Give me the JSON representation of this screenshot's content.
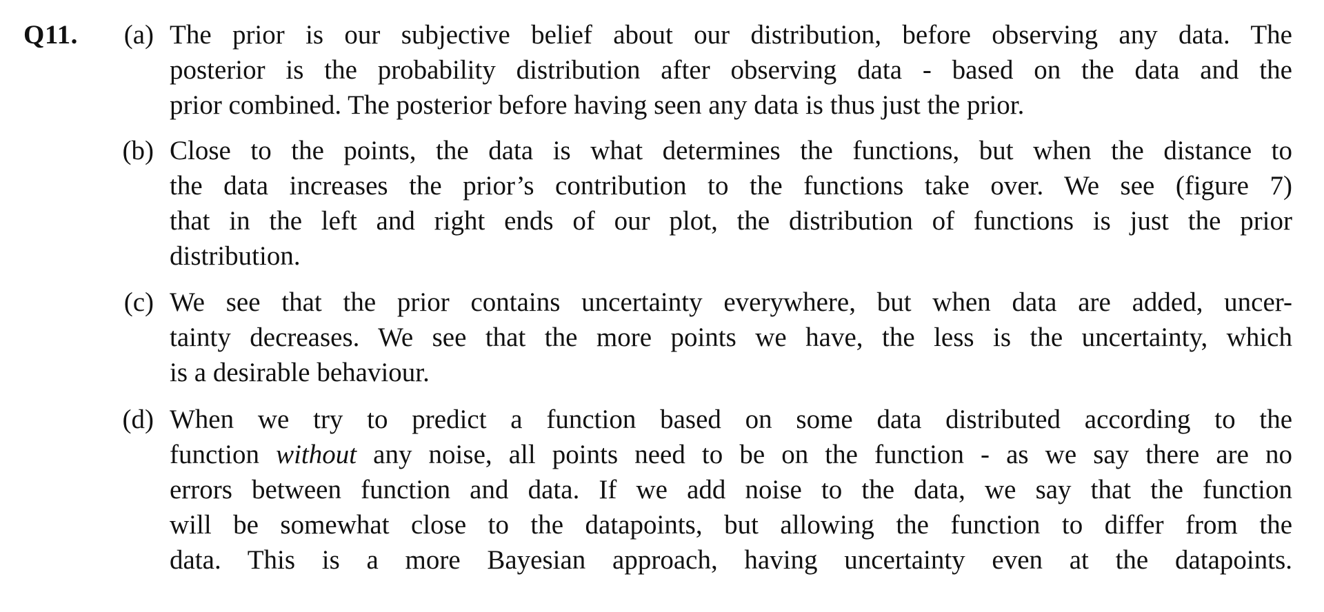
{
  "question": {
    "number": "Q11."
  },
  "items": [
    {
      "label": "(a)",
      "lines": [
        "The prior is our subjective belief about our distribution, before observing any data. The",
        "posterior is the probability distribution after observing data - based on the data and the",
        "prior combined. The posterior before having seen any data is thus just the prior."
      ]
    },
    {
      "label": "(b)",
      "lines": [
        "Close to the points, the data is what determines the functions, but when the distance to",
        "the data increases the prior’s contribution to the functions take over. We see (figure 7)",
        "that in the left and right ends of our plot, the distribution of functions is just the prior",
        "distribution."
      ]
    },
    {
      "label": "(c)",
      "lines": [
        "We see that the prior contains uncertainty everywhere, but when data are added, uncer-",
        "tainty decreases. We see that the more points we have, the less is the uncertainty, which",
        "is a desirable behaviour."
      ]
    },
    {
      "label": "(d)",
      "lines": [
        "When we try to predict a function based on some data distributed according to the",
        {
          "before": "function ",
          "italic": "without",
          "after": " any noise, all points need to be on the function - as we say there are no"
        },
        "errors between function and data. If we add noise to the data, we say that the function",
        "will be somewhat close to the datapoints, but allowing the function to differ from the",
        "data. This is a more Bayesian approach, having uncertainty even at the datapoints."
      ]
    }
  ]
}
